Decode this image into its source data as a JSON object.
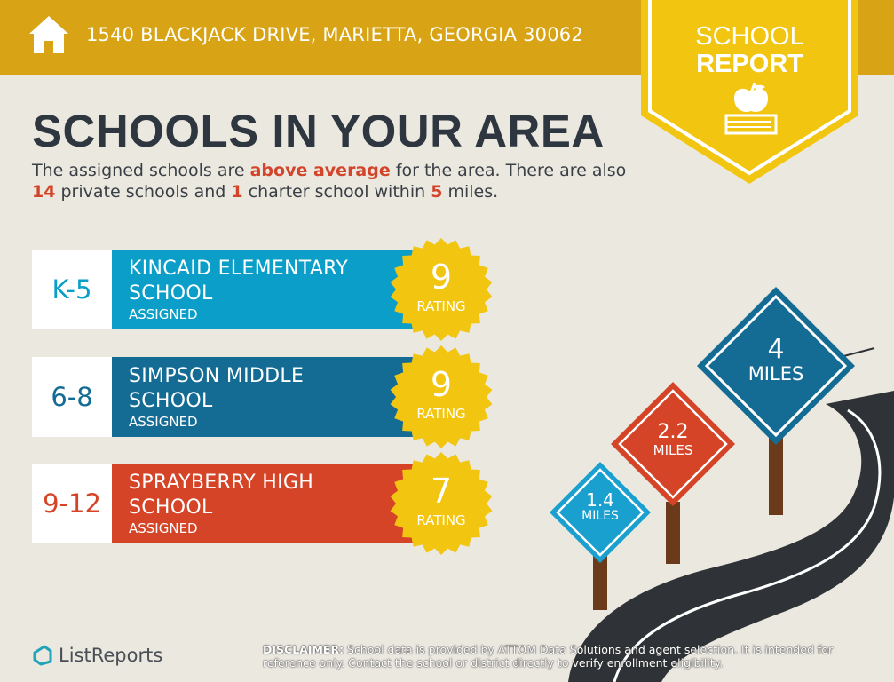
{
  "header": {
    "address": "1540 BLACKJACK DRIVE, MARIETTA, GEORGIA 30062",
    "icon": "house-icon"
  },
  "badge": {
    "line1": "SCHOOL",
    "line2": "REPORT",
    "icon": "apple-on-book-icon"
  },
  "headline": "SCHOOLS IN YOUR AREA",
  "summary": {
    "part1": "The assigned schools are ",
    "highlight1": "above average",
    "part2": " for the area. There are also ",
    "private_count": "14",
    "part3": " private schools and ",
    "charter_count": "1",
    "part4": " charter school within ",
    "radius": "5",
    "part5": " miles."
  },
  "schools": [
    {
      "grades": "K-5",
      "name_line1": "KINCAID ELEMENTARY",
      "name_line2": "SCHOOL",
      "status": "ASSIGNED",
      "rating": "9",
      "rating_label": "RATING",
      "color": "#0a9ec8",
      "grade_color": "#0a9ec8"
    },
    {
      "grades": "6-8",
      "name_line1": "SIMPSON MIDDLE",
      "name_line2": "SCHOOL",
      "status": "ASSIGNED",
      "rating": "9",
      "rating_label": "RATING",
      "color": "#146c94",
      "grade_color": "#146c94"
    },
    {
      "grades": "9-12",
      "name_line1": "SPRAYBERRY HIGH",
      "name_line2": "SCHOOL",
      "status": "ASSIGNED",
      "rating": "7",
      "rating_label": "RATING",
      "color": "#d64427",
      "grade_color": "#d64427"
    }
  ],
  "signs": [
    {
      "distance": "1.4",
      "unit": "MILES",
      "color": "#1aa0cf"
    },
    {
      "distance": "2.2",
      "unit": "MILES",
      "color": "#d64427"
    },
    {
      "distance": "4",
      "unit": "MILES",
      "color": "#146c94"
    }
  ],
  "footer": {
    "brand": "ListReports",
    "disclaimer_label": "DISCLAIMER:",
    "disclaimer_text": " School data is provided by ATTOM Data Solutions and agent selection. It is intended for reference only. Contact the school or district directly to verify enrollment eligibility."
  },
  "colors": {
    "gold": "#d8a416",
    "badge_yellow": "#f2c511",
    "background": "#ebe8e0",
    "seal_yellow": "#f2c511",
    "accent_red": "#d2452a"
  }
}
